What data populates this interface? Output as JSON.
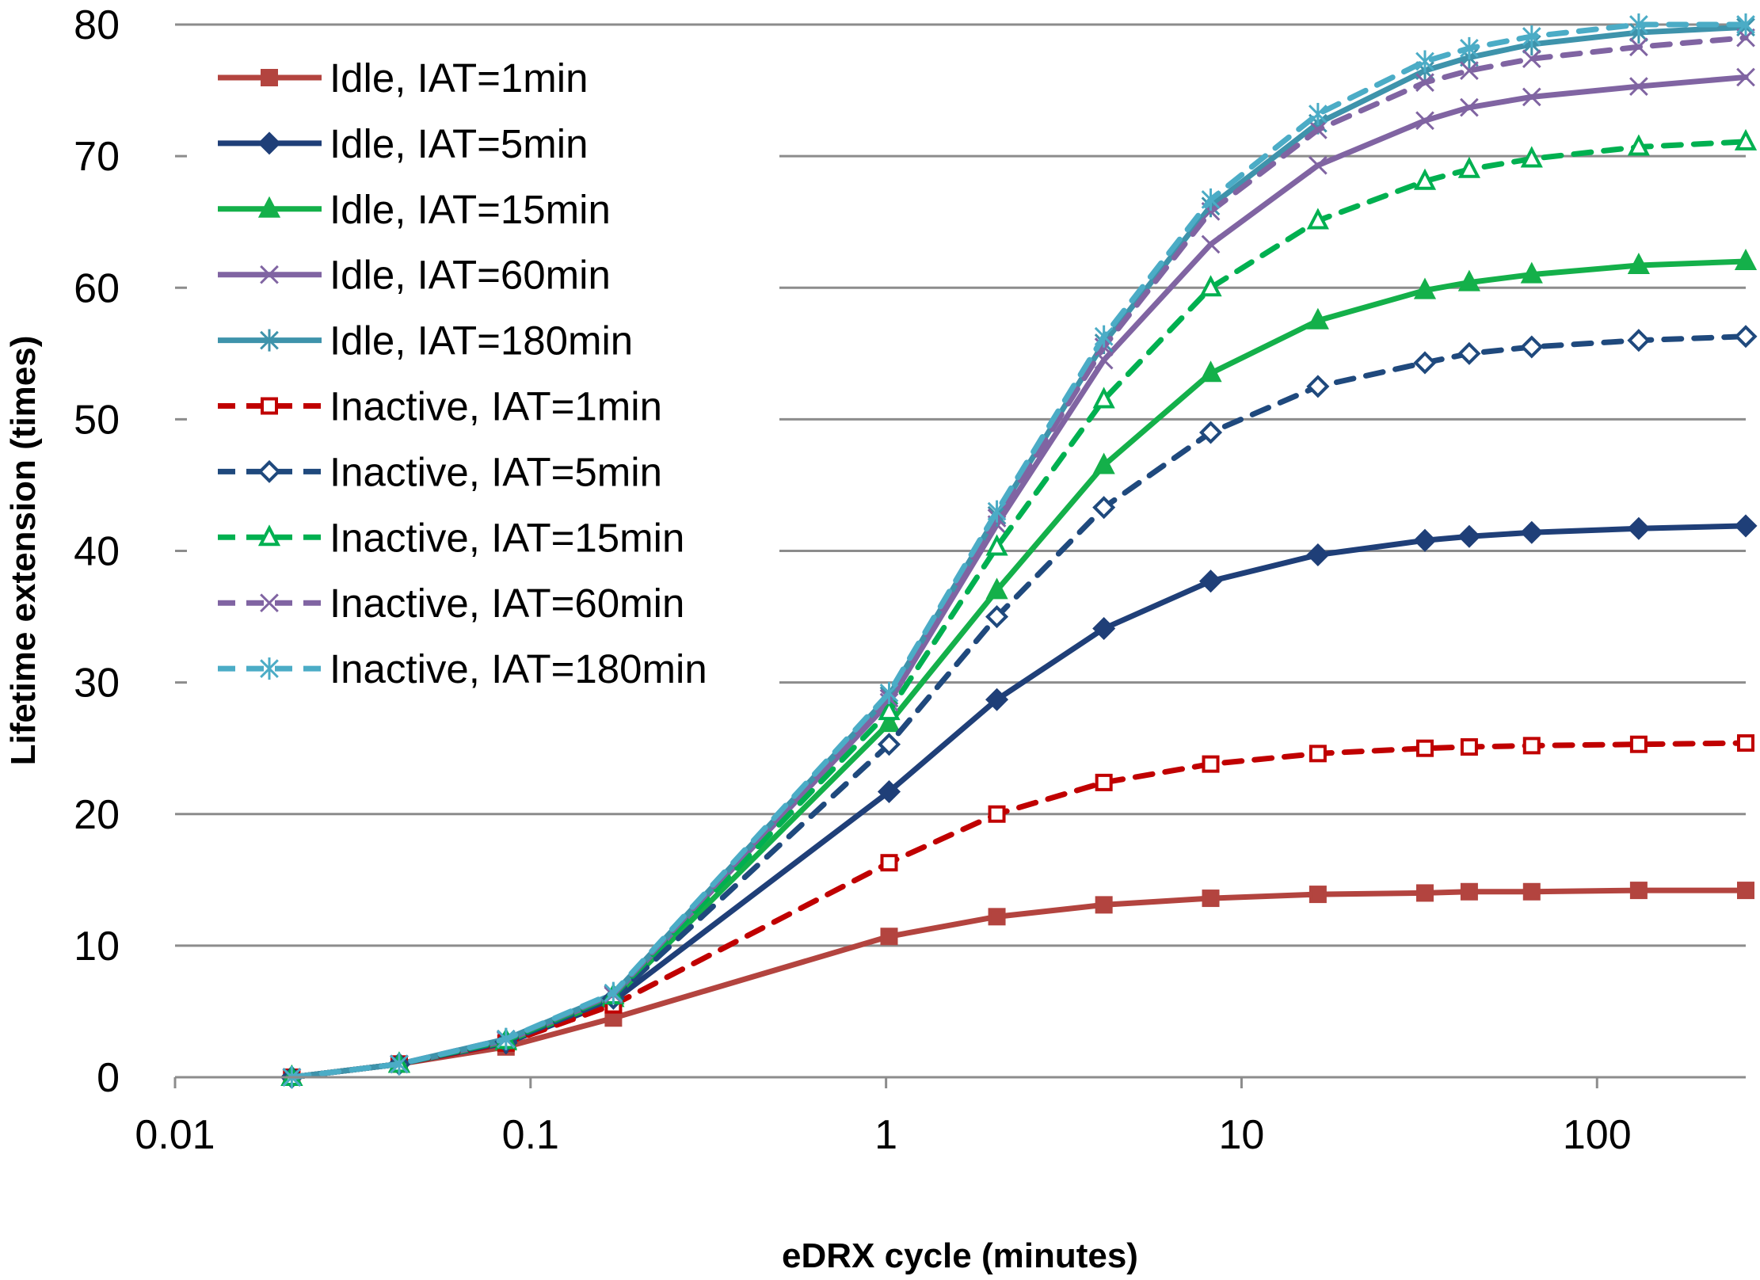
{
  "chart_data": {
    "type": "line",
    "title": "",
    "xlabel": "eDRX cycle (minutes)",
    "ylabel": "Lifetime extension (times)",
    "xscale": "log",
    "xlim": [
      0.01,
      262
    ],
    "ylim": [
      0,
      80
    ],
    "xticks": [
      0.01,
      0.1,
      1,
      10,
      100
    ],
    "xtick_labels": [
      "0.01",
      "0.1",
      "1",
      "10",
      "100"
    ],
    "yticks": [
      0,
      10,
      20,
      30,
      40,
      50,
      60,
      70,
      80
    ],
    "ytick_labels": [
      "0",
      "10",
      "20",
      "30",
      "40",
      "50",
      "60",
      "70",
      "80"
    ],
    "grid": "horizontal",
    "legend": "top-left",
    "x": [
      0.0213,
      0.0427,
      0.0853,
      0.171,
      1.02,
      2.05,
      4.1,
      8.19,
      16.4,
      32.8,
      43.7,
      65.5,
      131,
      262
    ],
    "series": [
      {
        "name": "Idle, IAT=1min",
        "color": "#b3443f",
        "dash": false,
        "marker": "square",
        "filled": true,
        "values": [
          0,
          1.0,
          2.3,
          4.5,
          10.7,
          12.2,
          13.1,
          13.6,
          13.9,
          14.0,
          14.1,
          14.1,
          14.2,
          14.2
        ]
      },
      {
        "name": "Idle, IAT=5min",
        "color": "#1f3f78",
        "dash": false,
        "marker": "diamond",
        "filled": true,
        "values": [
          0,
          1.0,
          2.6,
          5.8,
          21.7,
          28.7,
          34.1,
          37.7,
          39.7,
          40.8,
          41.1,
          41.4,
          41.7,
          41.9
        ]
      },
      {
        "name": "Idle, IAT=15min",
        "color": "#14b04a",
        "dash": false,
        "marker": "triangle",
        "filled": true,
        "values": [
          0,
          1.0,
          2.7,
          6.0,
          26.9,
          37.0,
          46.5,
          53.5,
          57.5,
          59.8,
          60.4,
          61.0,
          61.7,
          62.0
        ]
      },
      {
        "name": "Idle, IAT=60min",
        "color": "#8064a2",
        "dash": false,
        "marker": "x",
        "filled": true,
        "values": [
          0,
          1.0,
          2.8,
          6.2,
          28.5,
          42.0,
          54.5,
          63.3,
          69.3,
          72.7,
          73.7,
          74.5,
          75.3,
          76.0
        ]
      },
      {
        "name": "Idle, IAT=180min",
        "color": "#3e93ab",
        "dash": false,
        "marker": "asterisk",
        "filled": true,
        "values": [
          0,
          1.0,
          2.9,
          6.3,
          29.0,
          42.7,
          55.8,
          66.2,
          72.5,
          76.5,
          77.5,
          78.5,
          79.4,
          79.8
        ]
      },
      {
        "name": "Inactive, IAT=1min",
        "color": "#c00000",
        "dash": true,
        "marker": "square",
        "filled": false,
        "values": [
          0,
          1.0,
          2.6,
          5.5,
          16.3,
          20.0,
          22.4,
          23.8,
          24.6,
          25.0,
          25.1,
          25.2,
          25.3,
          25.4
        ]
      },
      {
        "name": "Inactive, IAT=5min",
        "color": "#1f497d",
        "dash": true,
        "marker": "diamond",
        "filled": false,
        "values": [
          0,
          1.0,
          2.7,
          6.0,
          25.3,
          35.0,
          43.3,
          49.0,
          52.5,
          54.3,
          55.0,
          55.5,
          56.0,
          56.3
        ]
      },
      {
        "name": "Inactive, IAT=15min",
        "color": "#00b050",
        "dash": true,
        "marker": "triangle",
        "filled": false,
        "values": [
          0,
          1.0,
          2.8,
          6.2,
          27.8,
          40.3,
          51.5,
          60.0,
          65.1,
          68.1,
          69.0,
          69.8,
          70.7,
          71.1
        ]
      },
      {
        "name": "Inactive, IAT=60min",
        "color": "#8064a2",
        "dash": true,
        "marker": "x",
        "filled": false,
        "values": [
          0,
          1.0,
          2.9,
          6.3,
          28.8,
          42.5,
          55.5,
          65.8,
          72.0,
          75.6,
          76.5,
          77.4,
          78.3,
          79.0
        ]
      },
      {
        "name": "Inactive, IAT=180min",
        "color": "#4bacc6",
        "dash": true,
        "marker": "asterisk",
        "filled": false,
        "values": [
          0,
          1.0,
          2.9,
          6.4,
          29.2,
          43.0,
          56.3,
          66.7,
          73.2,
          77.2,
          78.2,
          79.1,
          80.0,
          80.0
        ]
      }
    ]
  }
}
